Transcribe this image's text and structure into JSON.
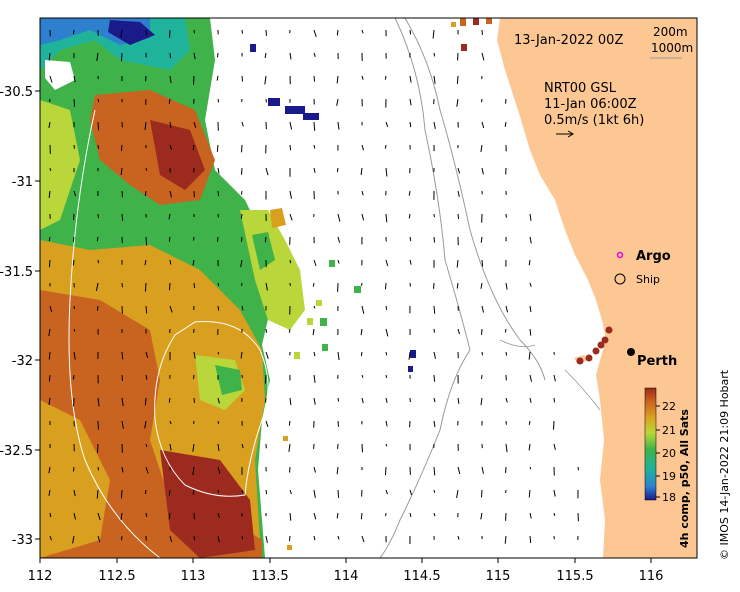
{
  "map": {
    "date_label": "13-Jan-2022 00Z",
    "isobaths": [
      "200m",
      "1000m"
    ],
    "current_source": "NRT00 GSL",
    "current_time": "11-Jan 06:00Z",
    "current_scale": "0.5m/s (1kt 6h)",
    "legend_argo": "Argo",
    "legend_ship": "Ship",
    "place_perth": "Perth",
    "credit": "© IMOS 14-Jan-2022 21:09 Hobart",
    "colorbar_title": "4h comp, p50, All Sats",
    "colorbar_ticks": [
      "22",
      "21",
      "20",
      "19",
      "18"
    ],
    "x_ticks": [
      "112",
      "112.5",
      "113",
      "113.5",
      "114",
      "114.5",
      "115",
      "115.5",
      "116"
    ],
    "y_ticks": [
      "-30.5",
      "-31",
      "-31.5",
      "-32",
      "-32.5",
      "-33"
    ],
    "land_color": "#fdc793",
    "sst_colors": [
      "#9c2a1e",
      "#c96320",
      "#d9a020",
      "#b9d73a",
      "#3fb24a",
      "#1eb39a",
      "#2f7fcf",
      "#1a1a8a"
    ]
  }
}
